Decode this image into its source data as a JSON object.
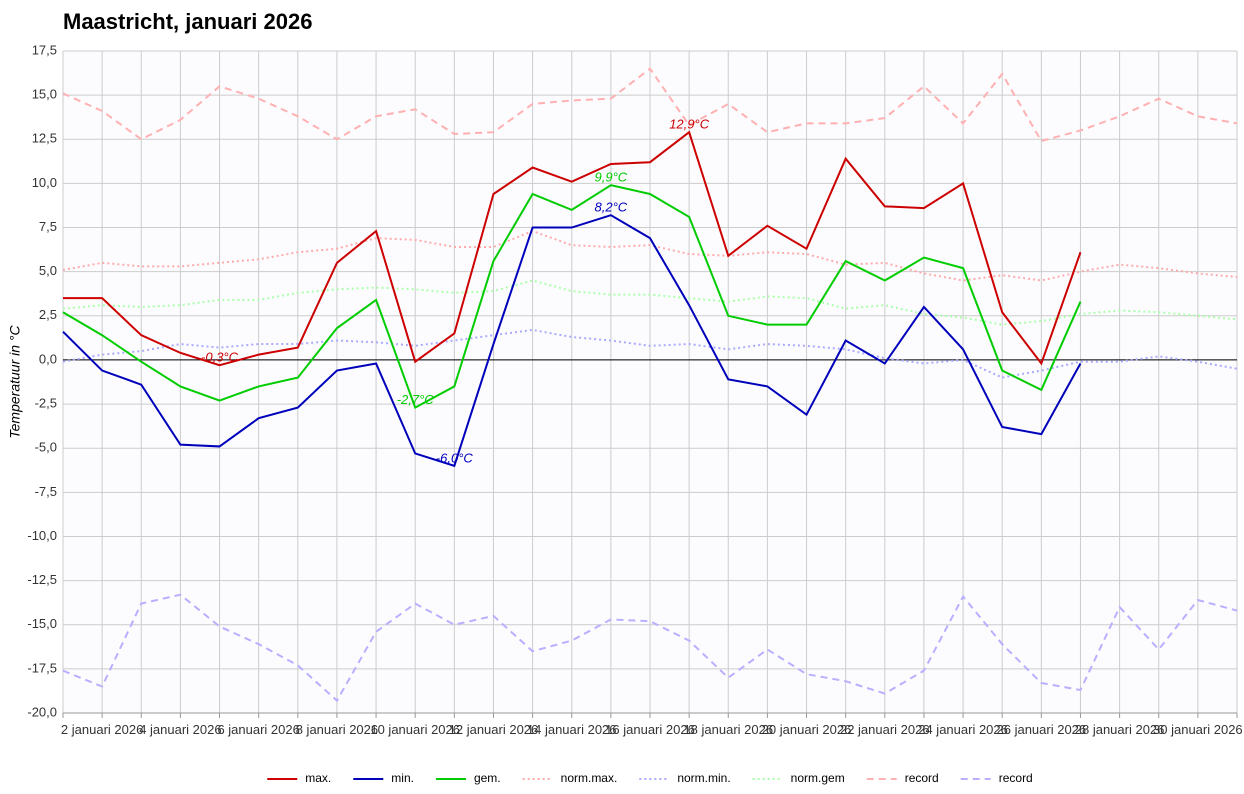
{
  "chart_data": {
    "type": "line",
    "title": "Maastricht, januari 2026",
    "y_label": "Temperatuur in °C",
    "categories": [
      null,
      "2 januari 2026",
      null,
      "4 januari 2026",
      null,
      "6 januari 2026",
      null,
      "8 januari 2026",
      null,
      "10 januari 2026",
      null,
      "12 januari 2026",
      null,
      "14 januari 2026",
      null,
      "16 januari 2026",
      null,
      "18 januari 2026",
      null,
      "20 januari 2026",
      null,
      "22 januari 2026",
      null,
      "24 januari 2026",
      null,
      "26 januari 2026",
      null,
      "28 januari 2026",
      null,
      "30 januari 2026",
      null
    ],
    "ylim": [
      -20,
      17.5
    ],
    "yticks": [
      {
        "value": -20,
        "label": "-20,0"
      },
      {
        "value": -17.5,
        "label": "-17,5"
      },
      {
        "value": -15,
        "label": "-15,0"
      },
      {
        "value": -12.5,
        "label": "-12,5"
      },
      {
        "value": -10,
        "label": "-10,0"
      },
      {
        "value": -7.5,
        "label": "-7,5"
      },
      {
        "value": -5,
        "label": "-5,0"
      },
      {
        "value": -2.5,
        "label": "-2,5"
      },
      {
        "value": 0,
        "label": "0,0"
      },
      {
        "value": 2.5,
        "label": "2,5"
      },
      {
        "value": 5,
        "label": "5,0"
      },
      {
        "value": 7.5,
        "label": "7,5"
      },
      {
        "value": 10,
        "label": "10,0"
      },
      {
        "value": 12.5,
        "label": "12,5"
      },
      {
        "value": 15,
        "label": "15,0"
      },
      {
        "value": 17.5,
        "label": "17,5"
      }
    ],
    "grid": true,
    "legend": "bottom",
    "series": [
      {
        "name": "max.",
        "color": "#cc0000",
        "style": "solid",
        "values": [
          3.5,
          3.5,
          1.4,
          0.4,
          -0.3,
          0.3,
          0.7,
          5.5,
          7.3,
          -0.1,
          1.5,
          9.4,
          10.9,
          10.1,
          11.1,
          11.2,
          12.9,
          5.9,
          7.6,
          6.3,
          11.4,
          8.7,
          8.6,
          10.0,
          2.7,
          -0.2,
          6.1,
          null,
          null,
          null,
          null
        ],
        "value_labels": [
          null,
          null,
          null,
          null,
          "-0,3°C",
          null,
          null,
          null,
          null,
          null,
          null,
          null,
          null,
          null,
          null,
          null,
          "12,9°C",
          null,
          null,
          null,
          null,
          null,
          null,
          null,
          null,
          null,
          null,
          null,
          null,
          null,
          null
        ]
      },
      {
        "name": "min.",
        "color": "#0000bb",
        "style": "solid",
        "values": [
          1.6,
          -0.6,
          -1.4,
          -4.8,
          -4.9,
          -3.3,
          -2.7,
          -0.6,
          -0.2,
          -5.3,
          -6.0,
          0.9,
          7.5,
          7.5,
          8.2,
          6.9,
          3.1,
          -1.1,
          -1.5,
          -3.1,
          1.1,
          -0.2,
          3.0,
          0.6,
          -3.8,
          -4.2,
          -0.2,
          null,
          null,
          null,
          null
        ],
        "value_labels": [
          null,
          null,
          null,
          null,
          null,
          null,
          null,
          null,
          null,
          null,
          "-6,0°C",
          null,
          null,
          null,
          "8,2°C",
          null,
          null,
          null,
          null,
          null,
          null,
          null,
          null,
          null,
          null,
          null,
          null,
          null,
          null,
          null,
          null
        ]
      },
      {
        "name": "gem.",
        "color": "#00cc00",
        "style": "solid",
        "values": [
          2.7,
          1.4,
          -0.1,
          -1.5,
          -2.3,
          -1.5,
          -1.0,
          1.8,
          3.4,
          -2.7,
          -1.5,
          5.6,
          9.4,
          8.5,
          9.9,
          9.4,
          8.1,
          2.5,
          2.0,
          2.0,
          5.6,
          4.5,
          5.8,
          5.2,
          -0.6,
          -1.7,
          3.3,
          null,
          null,
          null,
          null
        ],
        "value_labels": [
          null,
          null,
          null,
          null,
          null,
          null,
          null,
          null,
          null,
          "-2,7°C",
          null,
          null,
          null,
          null,
          "9,9°C",
          null,
          null,
          null,
          null,
          null,
          null,
          null,
          null,
          null,
          null,
          null,
          null,
          null,
          null,
          null,
          null
        ]
      },
      {
        "name": "norm.max.",
        "color": "#ffaaaa",
        "style": "dotted",
        "values": [
          5.1,
          5.5,
          5.3,
          5.3,
          5.5,
          5.7,
          6.1,
          6.3,
          6.9,
          6.8,
          6.4,
          6.4,
          7.3,
          6.5,
          6.4,
          6.5,
          6.0,
          5.9,
          6.1,
          6.0,
          5.4,
          5.5,
          4.9,
          4.5,
          4.8,
          4.5,
          5.0,
          5.4,
          5.2,
          4.9,
          4.7
        ]
      },
      {
        "name": "norm.min.",
        "color": "#aaaaff",
        "style": "dotted",
        "values": [
          -0.1,
          0.3,
          0.5,
          0.9,
          0.7,
          0.9,
          0.9,
          1.1,
          1.0,
          0.8,
          1.1,
          1.4,
          1.7,
          1.3,
          1.1,
          0.8,
          0.9,
          0.6,
          0.9,
          0.8,
          0.6,
          0.1,
          -0.2,
          0.0,
          -1.0,
          -0.6,
          -0.1,
          -0.1,
          0.2,
          -0.1,
          -0.5
        ]
      },
      {
        "name": "norm.gem",
        "color": "#aaffaa",
        "style": "dotted",
        "values": [
          2.9,
          3.1,
          3.0,
          3.1,
          3.4,
          3.4,
          3.8,
          4.0,
          4.1,
          4.0,
          3.8,
          3.9,
          4.5,
          3.9,
          3.7,
          3.7,
          3.5,
          3.3,
          3.6,
          3.5,
          2.9,
          3.1,
          2.6,
          2.4,
          2.0,
          2.2,
          2.6,
          2.8,
          2.7,
          2.5,
          2.3
        ]
      },
      {
        "name": "record",
        "color": "#ffb0b0",
        "style": "dashed",
        "values": [
          15.1,
          14.1,
          12.5,
          13.6,
          15.5,
          14.8,
          13.8,
          12.5,
          13.8,
          14.2,
          12.8,
          12.9,
          14.5,
          14.7,
          14.8,
          16.5,
          13.3,
          14.5,
          12.9,
          13.4,
          13.4,
          13.7,
          15.5,
          13.4,
          16.2,
          12.4,
          13.0,
          13.8,
          14.8,
          13.8,
          13.4
        ]
      },
      {
        "name": "record",
        "color": "#b8b0ff",
        "style": "dashed",
        "values": [
          -17.6,
          -18.5,
          -13.8,
          -13.3,
          -15.1,
          -16.1,
          -17.3,
          -19.3,
          -15.4,
          -13.8,
          -15.0,
          -14.5,
          -16.5,
          -15.9,
          -14.7,
          -14.8,
          -15.9,
          -18.0,
          -16.4,
          -17.8,
          -18.2,
          -18.9,
          -17.6,
          -13.4,
          -16.1,
          -18.3,
          -18.7,
          -14.0,
          -16.4,
          -13.6,
          -14.2
        ]
      }
    ]
  }
}
